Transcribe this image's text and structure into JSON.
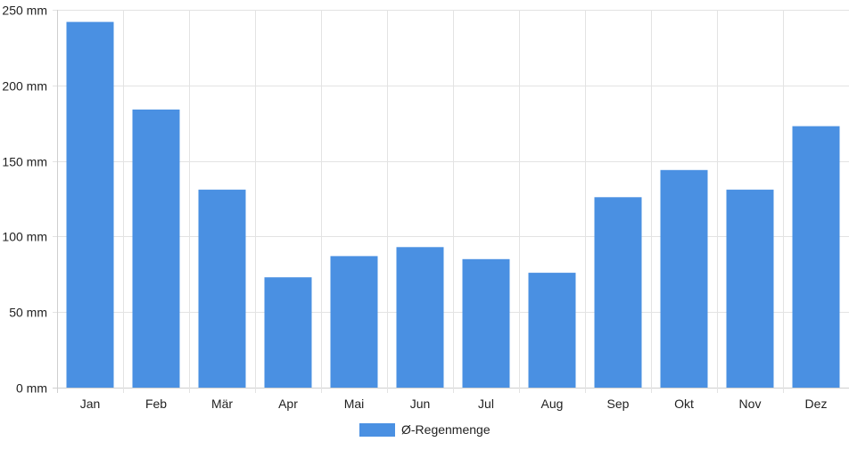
{
  "chart_data": {
    "type": "bar",
    "categories": [
      "Jan",
      "Feb",
      "Mär",
      "Apr",
      "Mai",
      "Jun",
      "Jul",
      "Aug",
      "Sep",
      "Okt",
      "Nov",
      "Dez"
    ],
    "series": [
      {
        "name": "Ø-Regenmenge",
        "values": [
          242,
          184,
          131,
          73,
          87,
          93,
          85,
          76,
          126,
          144,
          131,
          173
        ],
        "color": "#4a90e2"
      }
    ],
    "ylim": [
      0,
      250
    ],
    "yticks": [
      0,
      50,
      100,
      150,
      200,
      250
    ],
    "y_unit": "mm",
    "ytick_labels": [
      "0 mm",
      "50 mm",
      "100 mm",
      "150 mm",
      "200 mm",
      "250 mm"
    ],
    "grid": true,
    "legend_position": "bottom-center"
  }
}
